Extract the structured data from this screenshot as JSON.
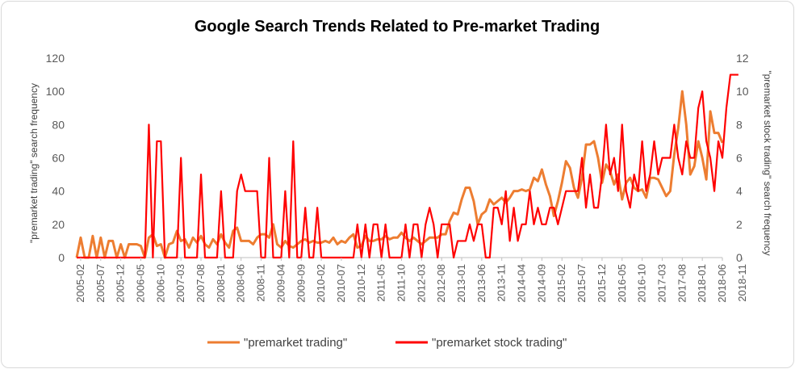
{
  "chart_data": {
    "type": "line",
    "title": "Google Search Trends Related to Pre-market Trading",
    "y_left": {
      "label": "\"premarket trading\" search frequency",
      "range": [
        0,
        120
      ],
      "ticks": [
        "0",
        "20",
        "40",
        "60",
        "80",
        "100",
        "120"
      ]
    },
    "y_right": {
      "label": "\"premarket stock trading\" search frequency",
      "range": [
        0,
        12
      ],
      "ticks": [
        "0",
        "2",
        "4",
        "6",
        "8",
        "10",
        "12"
      ]
    },
    "x_tick_labels": [
      "2005-02",
      "2005-07",
      "2005-12",
      "2006-05",
      "2006-10",
      "2007-03",
      "2007-08",
      "2008-01",
      "2008-06",
      "2008-11",
      "2009-04",
      "2009-09",
      "2010-02",
      "2010-07",
      "2010-12",
      "2011-05",
      "2011-10",
      "2012-03",
      "2012-08",
      "2013-01",
      "2013-06",
      "2013-11",
      "2014-04",
      "2014-09",
      "2015-02",
      "2015-07",
      "2015-12",
      "2016-05",
      "2016-10",
      "2017-03",
      "2017-08",
      "2018-01",
      "2018-06",
      "2018-11"
    ],
    "grid": false,
    "legend": "bottom",
    "series": [
      {
        "name": "\"premarket trading\"",
        "axis": "left",
        "color": "#ED7D31",
        "start": "2005-01",
        "values": [
          0,
          12,
          0,
          0,
          13,
          0,
          12,
          0,
          10,
          10,
          0,
          8,
          0,
          8,
          8,
          8,
          7,
          0,
          12,
          14,
          7,
          8,
          0,
          8,
          9,
          16,
          10,
          11,
          6,
          12,
          9,
          13,
          8,
          6,
          11,
          8,
          14,
          9,
          6,
          16,
          18,
          10,
          10,
          10,
          8,
          12,
          14,
          14,
          12,
          20,
          8,
          6,
          10,
          7,
          6,
          8,
          10,
          11,
          9,
          10,
          9,
          9,
          10,
          9,
          12,
          8,
          10,
          9,
          12,
          14,
          6,
          7,
          13,
          10,
          10,
          11,
          11,
          13,
          11,
          12,
          12,
          15,
          12,
          10,
          12,
          10,
          8,
          10,
          12,
          12,
          12,
          14,
          14,
          22,
          27,
          26,
          35,
          42,
          42,
          34,
          20,
          26,
          28,
          35,
          32,
          34,
          36,
          33,
          36,
          40,
          40,
          41,
          40,
          41,
          48,
          46,
          53,
          44,
          37,
          25,
          34,
          45,
          58,
          54,
          42,
          36,
          48,
          68,
          68,
          70,
          60,
          45,
          56,
          52,
          44,
          50,
          35,
          45,
          48,
          42,
          40,
          41,
          36,
          48,
          48,
          47,
          42,
          37,
          40,
          62,
          78,
          100,
          80,
          50,
          55,
          70,
          60,
          47,
          88,
          75,
          75,
          69
        ]
      },
      {
        "name": "\"premarket stock trading\"",
        "axis": "right",
        "color": "#FF0000",
        "start": "2005-01",
        "values": [
          0,
          0,
          0,
          0,
          0,
          0,
          0,
          0,
          0,
          0,
          0,
          0,
          0,
          0,
          0,
          0,
          0,
          0,
          8,
          0,
          7,
          7,
          0,
          0,
          0,
          0,
          6,
          0,
          0,
          0,
          0,
          5,
          0,
          0,
          0,
          0,
          4,
          0,
          0,
          0,
          4,
          5,
          4,
          4,
          4,
          4,
          0,
          0,
          6,
          0,
          0,
          0,
          4,
          0,
          7,
          0,
          0,
          3,
          0,
          0,
          3,
          0,
          0,
          0,
          0,
          0,
          0,
          0,
          0,
          0,
          2,
          0,
          2,
          0,
          2,
          2,
          0,
          2,
          0,
          0,
          0,
          0,
          2,
          0,
          2,
          2,
          0,
          2,
          3,
          2,
          0,
          2,
          2,
          2,
          0,
          1,
          1,
          1,
          2,
          1,
          2,
          2,
          0,
          0,
          3,
          3,
          2,
          4,
          1,
          3,
          1,
          2,
          2,
          4,
          2,
          3,
          2,
          2,
          3,
          3,
          2,
          3,
          4,
          4,
          4,
          4,
          6,
          3,
          5,
          3,
          3,
          5,
          8,
          5,
          6,
          4,
          8,
          4,
          3,
          5,
          4,
          7,
          4,
          5,
          7,
          5,
          6,
          6,
          6,
          8,
          6,
          5,
          7,
          6,
          6,
          9,
          10,
          7,
          6,
          4,
          7,
          6,
          9,
          11,
          11,
          11
        ]
      }
    ]
  }
}
